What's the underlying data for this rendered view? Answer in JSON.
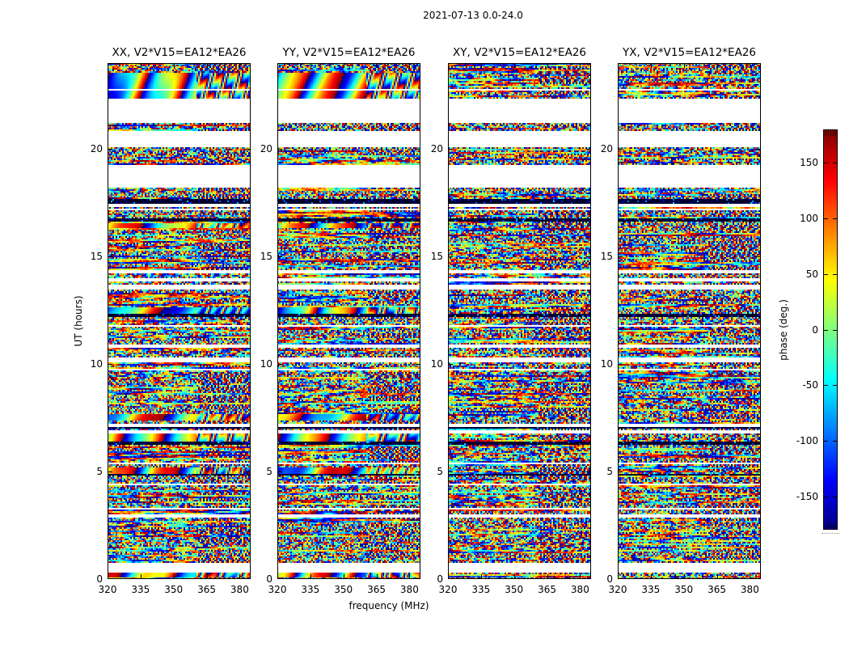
{
  "figure_title": "2021-07-13 0.0-24.0",
  "chart_data": {
    "type": "heatmap",
    "title": "2021-07-13 0.0-24.0",
    "xlabel": "frequency (MHz)",
    "ylabel": "UT (hours)",
    "x_range_mhz": [
      320,
      385
    ],
    "x_ticks": [
      320,
      335,
      350,
      365,
      380
    ],
    "y_range_hours": [
      0,
      24
    ],
    "y_ticks": [
      0,
      5,
      10,
      15,
      20
    ],
    "grid": false,
    "panels": [
      {
        "label": "XX, V2*V15=EA12*EA26",
        "polarization": "XX",
        "baseline": "V2*V15=EA12*EA26",
        "coherent_phase_visible": true,
        "seed": 11
      },
      {
        "label": "YY, V2*V15=EA12*EA26",
        "polarization": "YY",
        "baseline": "V2*V15=EA12*EA26",
        "coherent_phase_visible": true,
        "seed": 23
      },
      {
        "label": "XY, V2*V15=EA12*EA26",
        "polarization": "XY",
        "baseline": "V2*V15=EA12*EA26",
        "coherent_phase_visible": false,
        "seed": 37
      },
      {
        "label": "YX, V2*V15=EA12*EA26",
        "polarization": "YX",
        "baseline": "V2*V15=EA12*EA26",
        "coherent_phase_visible": false,
        "seed": 49
      }
    ],
    "colorbar": {
      "label": "phase (deg.)",
      "ticks": [
        -150,
        -100,
        -50,
        0,
        50,
        100,
        150
      ],
      "value_range": [
        -180,
        180
      ],
      "colormap": "jet",
      "colormap_ends": {
        "low": "#00008f",
        "high": "#800000"
      }
    },
    "flagged_time_ranges_hours": [
      [
        0.32,
        0.75
      ],
      [
        2.89,
        2.98
      ],
      [
        3.23,
        3.32
      ],
      [
        4.35,
        4.44
      ],
      [
        5.37,
        5.44
      ],
      [
        6.8,
        6.89
      ],
      [
        7.07,
        7.2
      ],
      [
        9.7,
        9.79
      ],
      [
        10.1,
        10.28
      ],
      [
        10.79,
        10.88
      ],
      [
        11.72,
        11.79
      ],
      [
        13.5,
        13.7
      ],
      [
        13.87,
        13.97
      ],
      [
        14.25,
        14.34
      ],
      [
        17.17,
        17.24
      ],
      [
        17.33,
        17.42
      ],
      [
        18.24,
        19.22
      ],
      [
        20.1,
        20.85
      ],
      [
        21.25,
        22.35
      ],
      [
        22.71,
        22.8
      ]
    ],
    "dark_time_ranges_hours": [
      [
        4.81,
        4.9
      ],
      [
        6.28,
        6.35
      ],
      [
        7.0,
        7.07
      ],
      [
        12.22,
        12.31
      ],
      [
        16.6,
        16.74
      ],
      [
        17.44,
        17.65
      ]
    ],
    "coherent_phase_bands_hours": [
      [
        0.1,
        0.32
      ],
      [
        4.92,
        5.2
      ],
      [
        6.35,
        6.8
      ],
      [
        7.4,
        7.66
      ],
      [
        12.33,
        12.61
      ],
      [
        16.35,
        16.56
      ],
      [
        22.35,
        23.55
      ]
    ]
  }
}
